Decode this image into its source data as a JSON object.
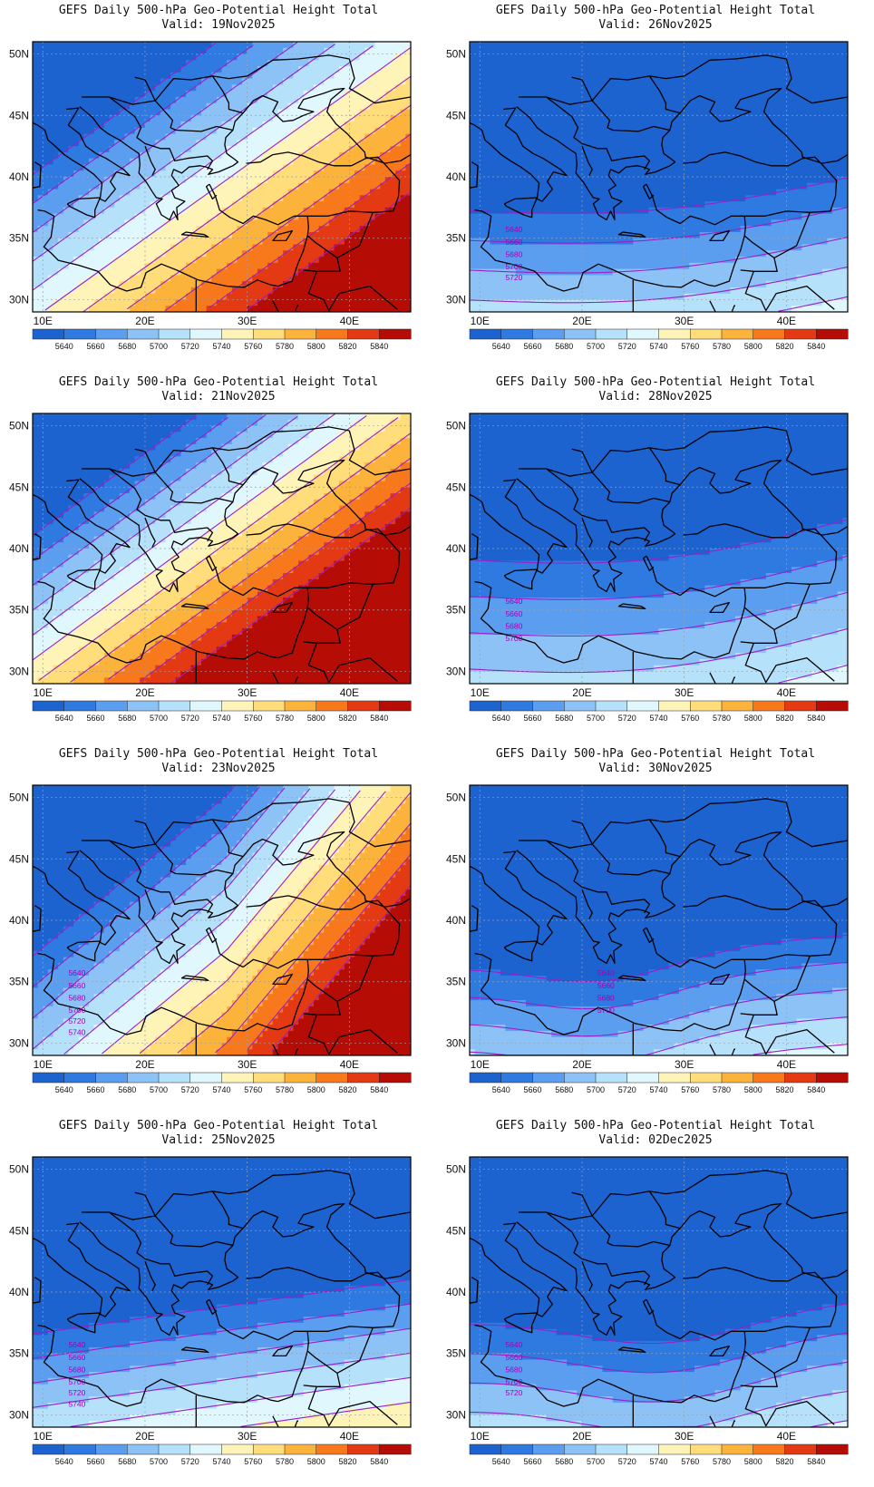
{
  "figure": {
    "panel_title": "GEFS Daily 500-hPa Geo-Potential Height Total",
    "lat_ticks": [
      "30N",
      "35N",
      "40N",
      "45N",
      "50N"
    ],
    "lon_ticks": [
      "10E",
      "20E",
      "30E",
      "40E"
    ],
    "lat_values": [
      30,
      35,
      40,
      45,
      50
    ],
    "lon_values": [
      10,
      20,
      30,
      40
    ],
    "lat_range": [
      29,
      51
    ],
    "lon_range": [
      9,
      46
    ],
    "colorbar": {
      "labels": [
        "5640",
        "5660",
        "5680",
        "5700",
        "5720",
        "5740",
        "5760",
        "5780",
        "5800",
        "5820",
        "5840"
      ],
      "colors": [
        "#1c63d0",
        "#2f7ae0",
        "#5b9ef0",
        "#8cc2f5",
        "#b6e1fb",
        "#e0f7fd",
        "#fff4b8",
        "#ffdd7a",
        "#fbb33c",
        "#f7791c",
        "#e43a14",
        "#b50c06"
      ]
    },
    "contour_color": "#9a1fc8",
    "coast_color": "#000000"
  },
  "panels": [
    {
      "id": "p1",
      "valid": "Valid: 19Nov2025",
      "pattern": "ridge_sw_ne",
      "amp": 1.1,
      "shift": 0,
      "labels": []
    },
    {
      "id": "p2",
      "valid": "Valid: 26Nov2025",
      "pattern": "zonal",
      "amp": 0.55,
      "shift": 0,
      "labels": [
        "5640",
        "5660",
        "5680",
        "5700",
        "5720"
      ]
    },
    {
      "id": "p3",
      "valid": "Valid: 21Nov2025",
      "pattern": "ridge_sw_ne",
      "amp": 1.3,
      "shift": 1,
      "labels": []
    },
    {
      "id": "p4",
      "valid": "Valid: 28Nov2025",
      "pattern": "zonal",
      "amp": 0.45,
      "shift": 0,
      "labels": [
        "5640",
        "5660",
        "5680",
        "5700"
      ]
    },
    {
      "id": "p5",
      "valid": "Valid: 23Nov2025",
      "pattern": "ridge_se",
      "amp": 1.2,
      "shift": 0,
      "labels": [
        "5640",
        "5660",
        "5680",
        "5700",
        "5720",
        "5740"
      ]
    },
    {
      "id": "p6",
      "valid": "Valid: 30Nov2025",
      "pattern": "trough",
      "amp": 0.5,
      "shift": 0,
      "labels": [
        "5640",
        "5660",
        "5680",
        "5700"
      ]
    },
    {
      "id": "p7",
      "valid": "Valid: 25Nov2025",
      "pattern": "zonal_warm",
      "amp": 0.7,
      "shift": 0,
      "labels": [
        "5640",
        "5660",
        "5680",
        "5700",
        "5720",
        "5740"
      ]
    },
    {
      "id": "p8",
      "valid": "Valid: 02Dec2025",
      "pattern": "trough_deep",
      "amp": 0.55,
      "shift": 0,
      "labels": [
        "5640",
        "5660",
        "5680",
        "5700",
        "5720"
      ]
    }
  ]
}
